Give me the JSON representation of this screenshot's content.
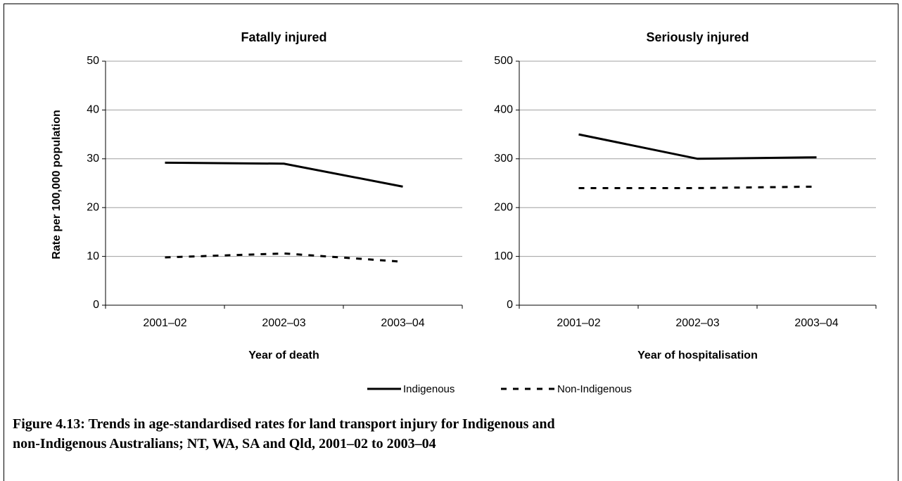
{
  "chart_data": [
    {
      "type": "line",
      "title": "Fatally injured",
      "x_label": "Year of death",
      "y_label": "Rate per 100,000 population",
      "categories": [
        "2001–02",
        "2002–03",
        "2003–04"
      ],
      "series": [
        {
          "name": "Indigenous",
          "color": "#000000",
          "line_style": "solid",
          "values": [
            29.2,
            29.0,
            24.3
          ]
        },
        {
          "name": "Non-Indigenous",
          "color": "#000000",
          "line_style": "dashed",
          "values": [
            9.8,
            10.6,
            8.9
          ]
        }
      ],
      "ylim": [
        0,
        50
      ],
      "yticks": [
        0,
        10,
        20,
        30,
        40,
        50
      ],
      "grid": true
    },
    {
      "type": "line",
      "title": "Seriously injured",
      "x_label": "Year of hospitalisation",
      "categories": [
        "2001–02",
        "2002–03",
        "2003–04"
      ],
      "series": [
        {
          "name": "Indigenous",
          "color": "#000000",
          "line_style": "solid",
          "values": [
            350,
            300,
            303
          ]
        },
        {
          "name": "Non-Indigenous",
          "color": "#000000",
          "line_style": "dashed",
          "values": [
            240,
            240,
            243
          ]
        }
      ],
      "ylim": [
        0,
        500
      ],
      "yticks": [
        0,
        100,
        200,
        300,
        400,
        500
      ],
      "grid": true
    }
  ],
  "caption": [
    "Figure 4.13: Trends in age-standardised rates for land transport injury for Indigenous and",
    "non-Indigenous Australians; NT, WA, SA and Qld, 2001–02 to 2003–04"
  ]
}
